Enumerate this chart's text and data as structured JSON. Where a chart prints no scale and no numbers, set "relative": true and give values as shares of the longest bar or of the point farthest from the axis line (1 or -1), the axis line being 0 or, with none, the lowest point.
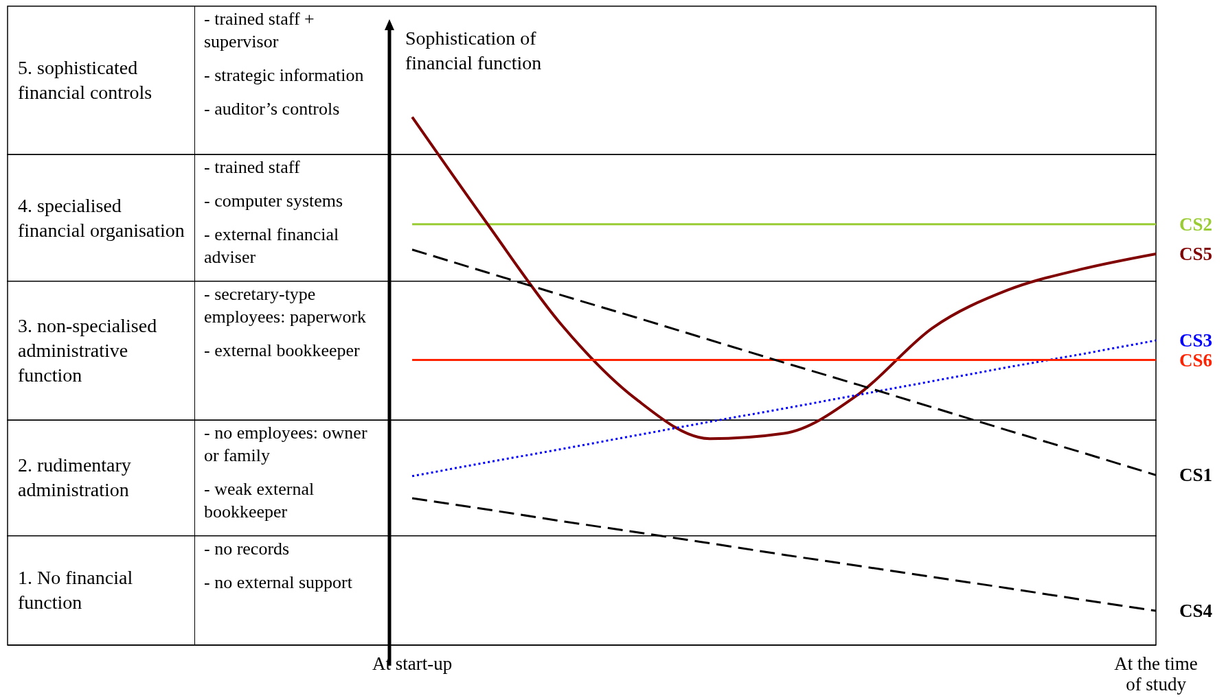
{
  "chart_data": {
    "type": "line",
    "relative": true,
    "ylabel": "Sophistication of financial function",
    "categories": [
      "At start-up",
      null,
      null,
      null,
      null,
      null,
      null,
      null,
      null,
      null,
      "At the time of study"
    ],
    "series": [
      {
        "name": "CS2",
        "color": "#99cc33",
        "line_style": "solid",
        "values": [
          0.797,
          0.797,
          0.797,
          0.797,
          0.797,
          0.797,
          0.797,
          0.797,
          0.797,
          0.797,
          0.797
        ]
      },
      {
        "name": "CS5",
        "color": "#800000",
        "line_style": "solid",
        "values": [
          1.0,
          0.8,
          0.608,
          0.467,
          0.391,
          0.401,
          0.475,
          0.601,
          0.672,
          0.712,
          0.741
        ]
      },
      {
        "name": "CS3",
        "color": "#0000ff",
        "line_style": "dotted",
        "values": [
          0.32,
          0.346,
          0.371,
          0.397,
          0.423,
          0.448,
          0.474,
          0.5,
          0.526,
          0.551,
          0.577
        ]
      },
      {
        "name": "CS6",
        "color": "#ff2200",
        "line_style": "solid",
        "values": [
          0.54,
          0.54,
          0.54,
          0.54,
          0.54,
          0.54,
          0.54,
          0.54,
          0.54,
          0.54,
          0.54
        ]
      },
      {
        "name": "CS1",
        "color": "#000000",
        "line_style": "dashed",
        "values": [
          0.749,
          0.706,
          0.663,
          0.621,
          0.578,
          0.535,
          0.493,
          0.45,
          0.407,
          0.365,
          0.322
        ]
      },
      {
        "name": "CS4",
        "color": "#000000",
        "line_style": "dashed",
        "values": [
          0.278,
          0.257,
          0.235,
          0.214,
          0.193,
          0.171,
          0.15,
          0.129,
          0.108,
          0.086,
          0.065
        ]
      }
    ],
    "bands": [
      {
        "axis": "y",
        "from": 0.929,
        "to": 1.21,
        "label": "5. sophisticated financial controls"
      },
      {
        "axis": "y",
        "from": 0.689,
        "to": 0.929,
        "label": "4. specialised financial organisation"
      },
      {
        "axis": "y",
        "from": 0.426,
        "to": 0.689,
        "label": "3. non-specialised administrative function"
      },
      {
        "axis": "y",
        "from": 0.207,
        "to": 0.426,
        "label": "2. rudimentary administration"
      },
      {
        "axis": "y",
        "from": 0,
        "to": 0.207,
        "label": "1. No financial function"
      }
    ],
    "annotations": [
      "- trained staff + supervisor\n- strategic information\n- auditor’s controls",
      "- trained staff\n- computer systems\n- external financial adviser",
      "- secretary-type employees: paperwork\n- external bookkeeper",
      "- no employees: owner or family\n- weak external bookkeeper",
      "- no records\n- no external support"
    ],
    "legend": false,
    "grid": false
  }
}
